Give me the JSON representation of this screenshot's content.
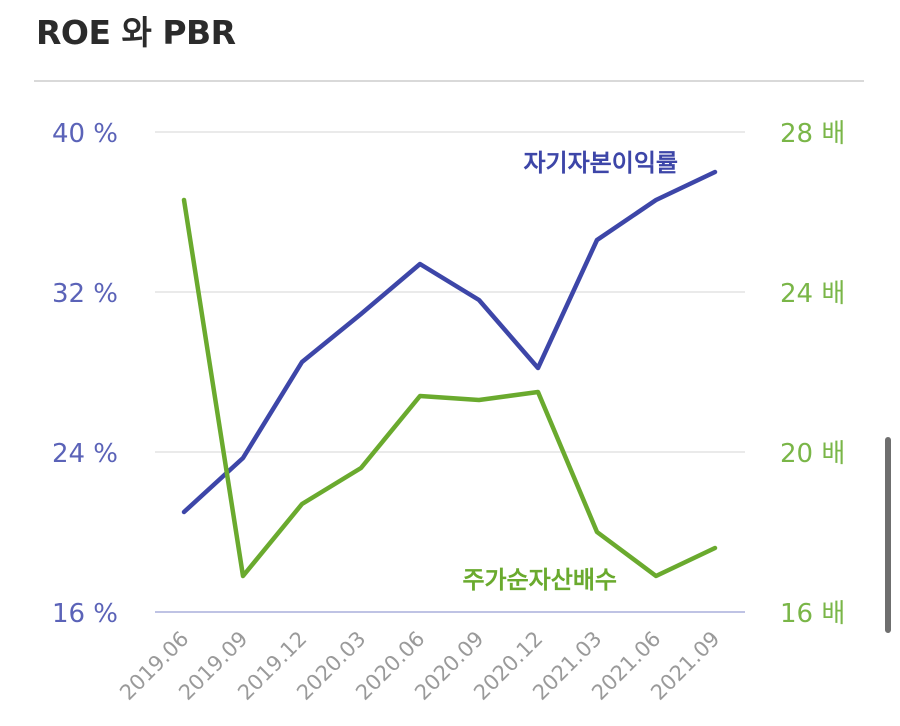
{
  "page": {
    "title": "ROE 와 PBR"
  },
  "chart_data": {
    "type": "line",
    "title": "ROE 와 PBR",
    "categories": [
      "2019.06",
      "2019.09",
      "2019.12",
      "2020.03",
      "2020.06",
      "2020.09",
      "2020.12",
      "2021.03",
      "2021.06",
      "2021.09"
    ],
    "left_axis": {
      "ticks": [
        "40 %",
        "32 %",
        "24 %",
        "16 %"
      ],
      "tick_values": [
        40,
        32,
        24,
        16
      ],
      "ylim": [
        16,
        40
      ],
      "color": "#5b63b8"
    },
    "right_axis": {
      "ticks": [
        "28 배",
        "24 배",
        "20 배",
        "16 배"
      ],
      "tick_values": [
        28,
        24,
        20,
        16
      ],
      "ylim": [
        16,
        28
      ],
      "color": "#7ab648"
    },
    "series": [
      {
        "name": "자기자본이익률",
        "axis": "left",
        "color": "#3d46a8",
        "values": [
          21.0,
          23.7,
          28.5,
          30.9,
          33.4,
          31.6,
          28.2,
          34.6,
          36.6,
          38.0
        ]
      },
      {
        "name": "주가순자산배수",
        "axis": "right",
        "color": "#6aaa2e",
        "values": [
          26.3,
          16.9,
          18.7,
          19.6,
          21.4,
          21.3,
          21.5,
          18.0,
          16.9,
          17.6
        ]
      }
    ],
    "grid": true,
    "grid_color": "#e3e3e3"
  }
}
